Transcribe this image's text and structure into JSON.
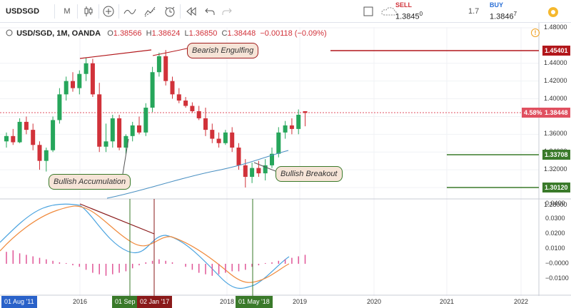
{
  "toolbar": {
    "symbol": "USDSGD",
    "interval": "M",
    "icons": [
      "candles-icon",
      "add-indicator-icon",
      "indicators-icon",
      "templates-icon",
      "alert-icon",
      "replay-icon",
      "undo-icon",
      "redo-icon"
    ]
  },
  "trade": {
    "sell_label": "SELL",
    "sell_price_main": "1.3845",
    "sell_price_sup": "0",
    "spread": "1.7",
    "buy_label": "BUY",
    "buy_price_main": "1.3846",
    "buy_price_sup": "7"
  },
  "legend": {
    "symbol": "USD/SGD, 1M, OANDA",
    "o_label": "O",
    "o": "1.38566",
    "h_label": "H",
    "h": "1.38624",
    "l_label": "L",
    "l": "1.36850",
    "c_label": "C",
    "c": "1.38448",
    "change": "−0.00118 (−0.09%)"
  },
  "annotations": {
    "bearish": "Bearish Engulfing",
    "bullish_acc": "Bullish Accumulation",
    "bullish_break": "Bullish Breakout"
  },
  "price_axis": {
    "ticks": [
      "1.48000",
      "1.44000",
      "1.42000",
      "1.40000",
      "1.38000",
      "1.36000",
      "1.34000",
      "1.32000",
      "1.30000",
      "1.28000"
    ],
    "levels": {
      "resistance": "1.45401",
      "current_pct": "4.58%",
      "current": "1.38448",
      "support1": "1.33708",
      "support2": "1.30120"
    }
  },
  "osc_axis": {
    "ticks": [
      "0.0400",
      "0.0300",
      "0.0200",
      "0.0100",
      "−0.0000",
      "−0.0100"
    ]
  },
  "time_axis": {
    "ticks": [
      "2016",
      "2018",
      "2019",
      "2020",
      "2021",
      "2022"
    ],
    "tags": [
      "01 Aug '11",
      "01 Sep '1",
      "02 Jan '17",
      "01 May '18"
    ]
  },
  "colors": {
    "up": "#26a65b",
    "down": "#d1323a",
    "ma": "#4a90c2",
    "macd": "#4aa3df",
    "signal": "#f08a3c",
    "hist": "#e05597",
    "resistance": "#b2171b",
    "support": "#3a7a2a"
  },
  "chart_data": {
    "type": "candlestick",
    "title": "USD/SGD, 1M, OANDA",
    "ylim": [
      1.28,
      1.48
    ],
    "x": [
      "2015-01",
      "2015-02",
      "2015-03",
      "2015-04",
      "2015-05",
      "2015-06",
      "2015-07",
      "2015-08",
      "2015-09",
      "2015-10",
      "2015-11",
      "2015-12",
      "2016-01",
      "2016-02",
      "2016-03",
      "2016-04",
      "2016-05",
      "2016-06",
      "2016-07",
      "2016-08",
      "2016-09",
      "2016-10",
      "2016-11",
      "2016-12",
      "2017-01",
      "2017-02",
      "2017-03",
      "2017-04",
      "2017-05",
      "2017-06",
      "2017-07",
      "2017-08",
      "2017-09",
      "2017-10",
      "2017-11",
      "2017-12",
      "2018-01",
      "2018-02",
      "2018-03",
      "2018-04",
      "2018-05",
      "2018-06",
      "2018-07",
      "2018-08",
      "2018-09",
      "2018-10"
    ],
    "ohlc": [
      [
        1.352,
        1.362,
        1.345,
        1.358
      ],
      [
        1.358,
        1.366,
        1.348,
        1.351
      ],
      [
        1.351,
        1.378,
        1.35,
        1.374
      ],
      [
        1.374,
        1.38,
        1.36,
        1.365
      ],
      [
        1.365,
        1.372,
        1.342,
        1.348
      ],
      [
        1.348,
        1.352,
        1.32,
        1.33
      ],
      [
        1.33,
        1.345,
        1.318,
        1.342
      ],
      [
        1.342,
        1.38,
        1.34,
        1.376
      ],
      [
        1.376,
        1.412,
        1.372,
        1.405
      ],
      [
        1.405,
        1.425,
        1.398,
        1.42
      ],
      [
        1.42,
        1.43,
        1.408,
        1.412
      ],
      [
        1.412,
        1.432,
        1.405,
        1.428
      ],
      [
        1.428,
        1.446,
        1.42,
        1.44
      ],
      [
        1.44,
        1.445,
        1.402,
        1.405
      ],
      [
        1.405,
        1.418,
        1.34,
        1.346
      ],
      [
        1.346,
        1.372,
        1.34,
        1.352
      ],
      [
        1.352,
        1.382,
        1.345,
        1.378
      ],
      [
        1.378,
        1.382,
        1.342,
        1.345
      ],
      [
        1.345,
        1.36,
        1.338,
        1.358
      ],
      [
        1.358,
        1.374,
        1.352,
        1.37
      ],
      [
        1.37,
        1.38,
        1.36,
        1.362
      ],
      [
        1.362,
        1.395,
        1.358,
        1.39
      ],
      [
        1.39,
        1.436,
        1.385,
        1.43
      ],
      [
        1.43,
        1.452,
        1.425,
        1.448
      ],
      [
        1.448,
        1.455,
        1.415,
        1.42
      ],
      [
        1.42,
        1.425,
        1.4,
        1.405
      ],
      [
        1.405,
        1.412,
        1.395,
        1.398
      ],
      [
        1.398,
        1.402,
        1.39,
        1.392
      ],
      [
        1.392,
        1.396,
        1.384,
        1.386
      ],
      [
        1.386,
        1.392,
        1.376,
        1.378
      ],
      [
        1.378,
        1.39,
        1.358,
        1.365
      ],
      [
        1.365,
        1.372,
        1.35,
        1.355
      ],
      [
        1.355,
        1.362,
        1.345,
        1.35
      ],
      [
        1.35,
        1.365,
        1.348,
        1.362
      ],
      [
        1.362,
        1.368,
        1.34,
        1.345
      ],
      [
        1.345,
        1.35,
        1.32,
        1.325
      ],
      [
        1.325,
        1.332,
        1.3,
        1.312
      ],
      [
        1.312,
        1.328,
        1.305,
        1.322
      ],
      [
        1.322,
        1.33,
        1.312,
        1.316
      ],
      [
        1.316,
        1.332,
        1.308,
        1.325
      ],
      [
        1.325,
        1.345,
        1.322,
        1.338
      ],
      [
        1.338,
        1.368,
        1.334,
        1.362
      ],
      [
        1.362,
        1.375,
        1.355,
        1.37
      ],
      [
        1.37,
        1.378,
        1.36,
        1.366
      ],
      [
        1.366,
        1.388,
        1.36,
        1.382
      ],
      [
        1.386,
        1.386,
        1.369,
        1.384
      ]
    ]
  }
}
